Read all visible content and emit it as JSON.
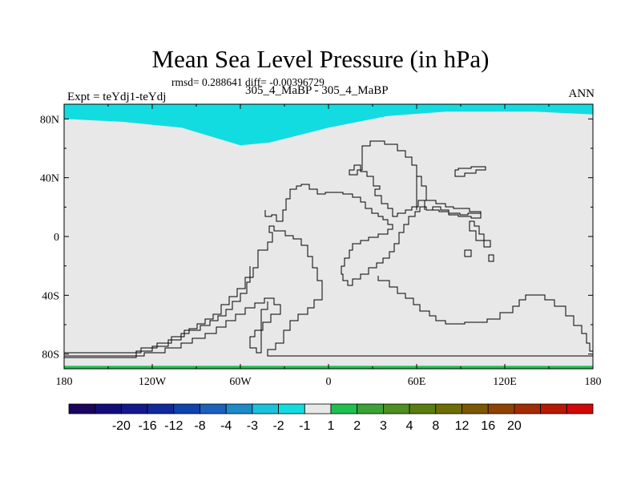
{
  "chart_data": {
    "type": "map",
    "title": "Mean Sea Level Pressure (in hPa)",
    "stats_line": "rmsd= 0.288641  diff= -0.00396729",
    "left_label": "Expt = teYdj1-teYdj",
    "subtitle": "305_4_MaBP - 305_4_MaBP",
    "season": "ANN",
    "x_axis": {
      "range": [
        -180,
        180
      ],
      "ticks": [
        {
          "value": -180,
          "label": "180"
        },
        {
          "value": -120,
          "label": "120W"
        },
        {
          "value": -60,
          "label": "60W"
        },
        {
          "value": 0,
          "label": "0"
        },
        {
          "value": 60,
          "label": "60E"
        },
        {
          "value": 120,
          "label": "120E"
        },
        {
          "value": 180,
          "label": "180"
        }
      ]
    },
    "y_axis": {
      "range": [
        -90,
        90
      ],
      "ticks": [
        {
          "value": 80,
          "label": "80N"
        },
        {
          "value": 40,
          "label": "40N"
        },
        {
          "value": 0,
          "label": "0"
        },
        {
          "value": -40,
          "label": "40S"
        },
        {
          "value": -80,
          "label": "80S"
        }
      ]
    },
    "field": {
      "background_bin": "-1 to 1",
      "north_band_bin": "-2 to -1",
      "south_band_bin": "1 to 2",
      "north_band_lower_lat": [
        {
          "lon": -180,
          "lat": 80
        },
        {
          "lon": -140,
          "lat": 78
        },
        {
          "lon": -100,
          "lat": 74
        },
        {
          "lon": -80,
          "lat": 68
        },
        {
          "lon": -60,
          "lat": 62
        },
        {
          "lon": -40,
          "lat": 64
        },
        {
          "lon": 0,
          "lat": 74
        },
        {
          "lon": 40,
          "lat": 82
        },
        {
          "lon": 80,
          "lat": 85
        },
        {
          "lon": 140,
          "lat": 85
        },
        {
          "lon": 180,
          "lat": 83
        }
      ],
      "south_band_upper_lat": -88
    },
    "colorbar": {
      "colors": [
        "#1a0460",
        "#130d7b",
        "#14188c",
        "#10299b",
        "#0f43ad",
        "#1d61bf",
        "#1c8bc8",
        "#1ac3dc",
        "#13dce0",
        "#e8e8e8",
        "#20c050",
        "#3da236",
        "#4e8e23",
        "#5a7d11",
        "#6d6e04",
        "#7c5800",
        "#904203",
        "#a32c02",
        "#b61a02",
        "#d00808"
      ],
      "labels": [
        "-20",
        "-16",
        "-12",
        "-8",
        "-4",
        "-3",
        "-2",
        "-1",
        "1",
        "2",
        "3",
        "4",
        "8",
        "12",
        "16",
        "20"
      ]
    }
  }
}
